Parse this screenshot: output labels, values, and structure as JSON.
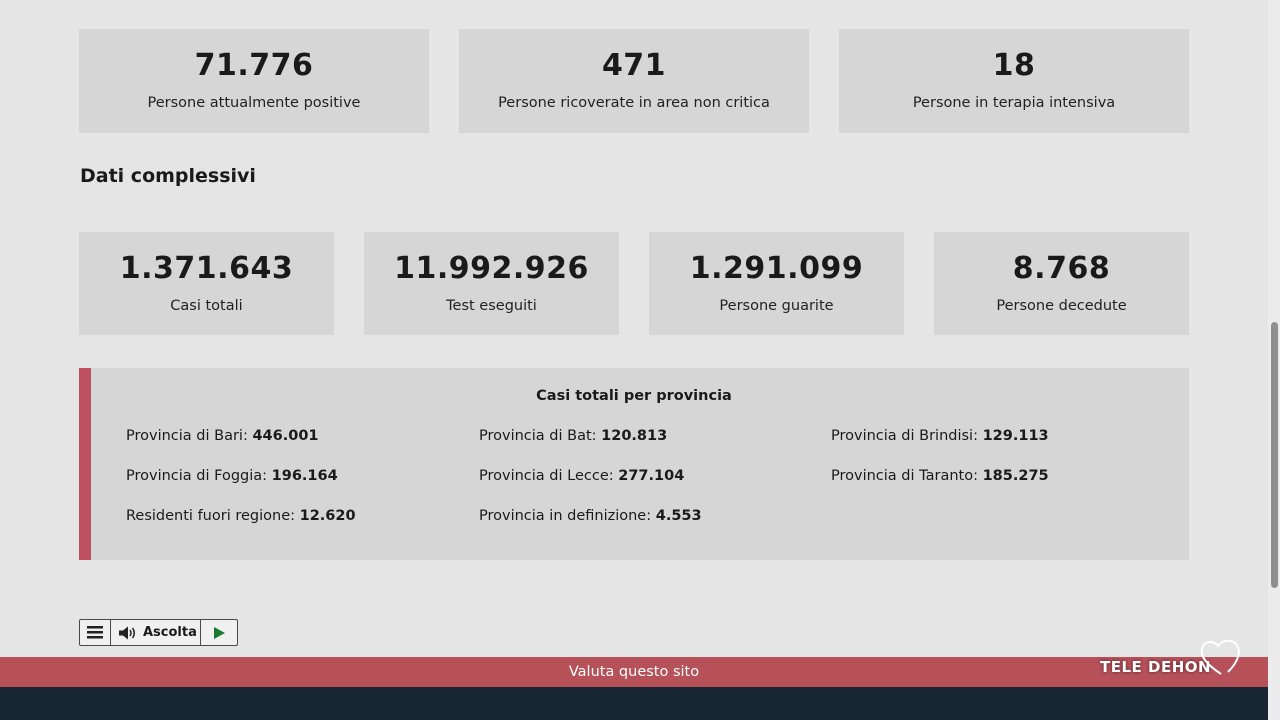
{
  "current": [
    {
      "value": "71.776",
      "label": "Persone attualmente positive"
    },
    {
      "value": "471",
      "label": "Persone ricoverate in area non critica"
    },
    {
      "value": "18",
      "label": "Persone in terapia intensiva"
    }
  ],
  "overall": {
    "title": "Dati complessivi",
    "cards": [
      {
        "value": "1.371.643",
        "label": "Casi totali"
      },
      {
        "value": "11.992.926",
        "label": "Test eseguiti"
      },
      {
        "value": "1.291.099",
        "label": "Persone guarite"
      },
      {
        "value": "8.768",
        "label": "Persone decedute"
      }
    ]
  },
  "provinces": {
    "title": "Casi totali per provincia",
    "items": [
      {
        "label": "Provincia di Bari:",
        "value": "446.001"
      },
      {
        "label": "Provincia di Bat:",
        "value": "120.813"
      },
      {
        "label": "Provincia di Brindisi:",
        "value": "129.113"
      },
      {
        "label": "Provincia di Foggia:",
        "value": "196.164"
      },
      {
        "label": "Provincia di Lecce:",
        "value": "277.104"
      },
      {
        "label": "Provincia di Taranto:",
        "value": "185.275"
      },
      {
        "label": "Residenti fuori regione:",
        "value": "12.620"
      },
      {
        "label": "Provincia in definizione:",
        "value": "4.553"
      }
    ]
  },
  "player": {
    "listen_label": "Ascolta"
  },
  "rate_site": {
    "label": "Valuta questo sito"
  },
  "watermark": {
    "text": "TELE DEHON"
  },
  "colors": {
    "accent": "#bf5060",
    "rate_bar": "#b65059",
    "footer": "#182634",
    "card": "#d6d6d6"
  },
  "icons": {
    "menu": "menu-icon",
    "speaker": "speaker-icon",
    "play": "play-icon"
  }
}
